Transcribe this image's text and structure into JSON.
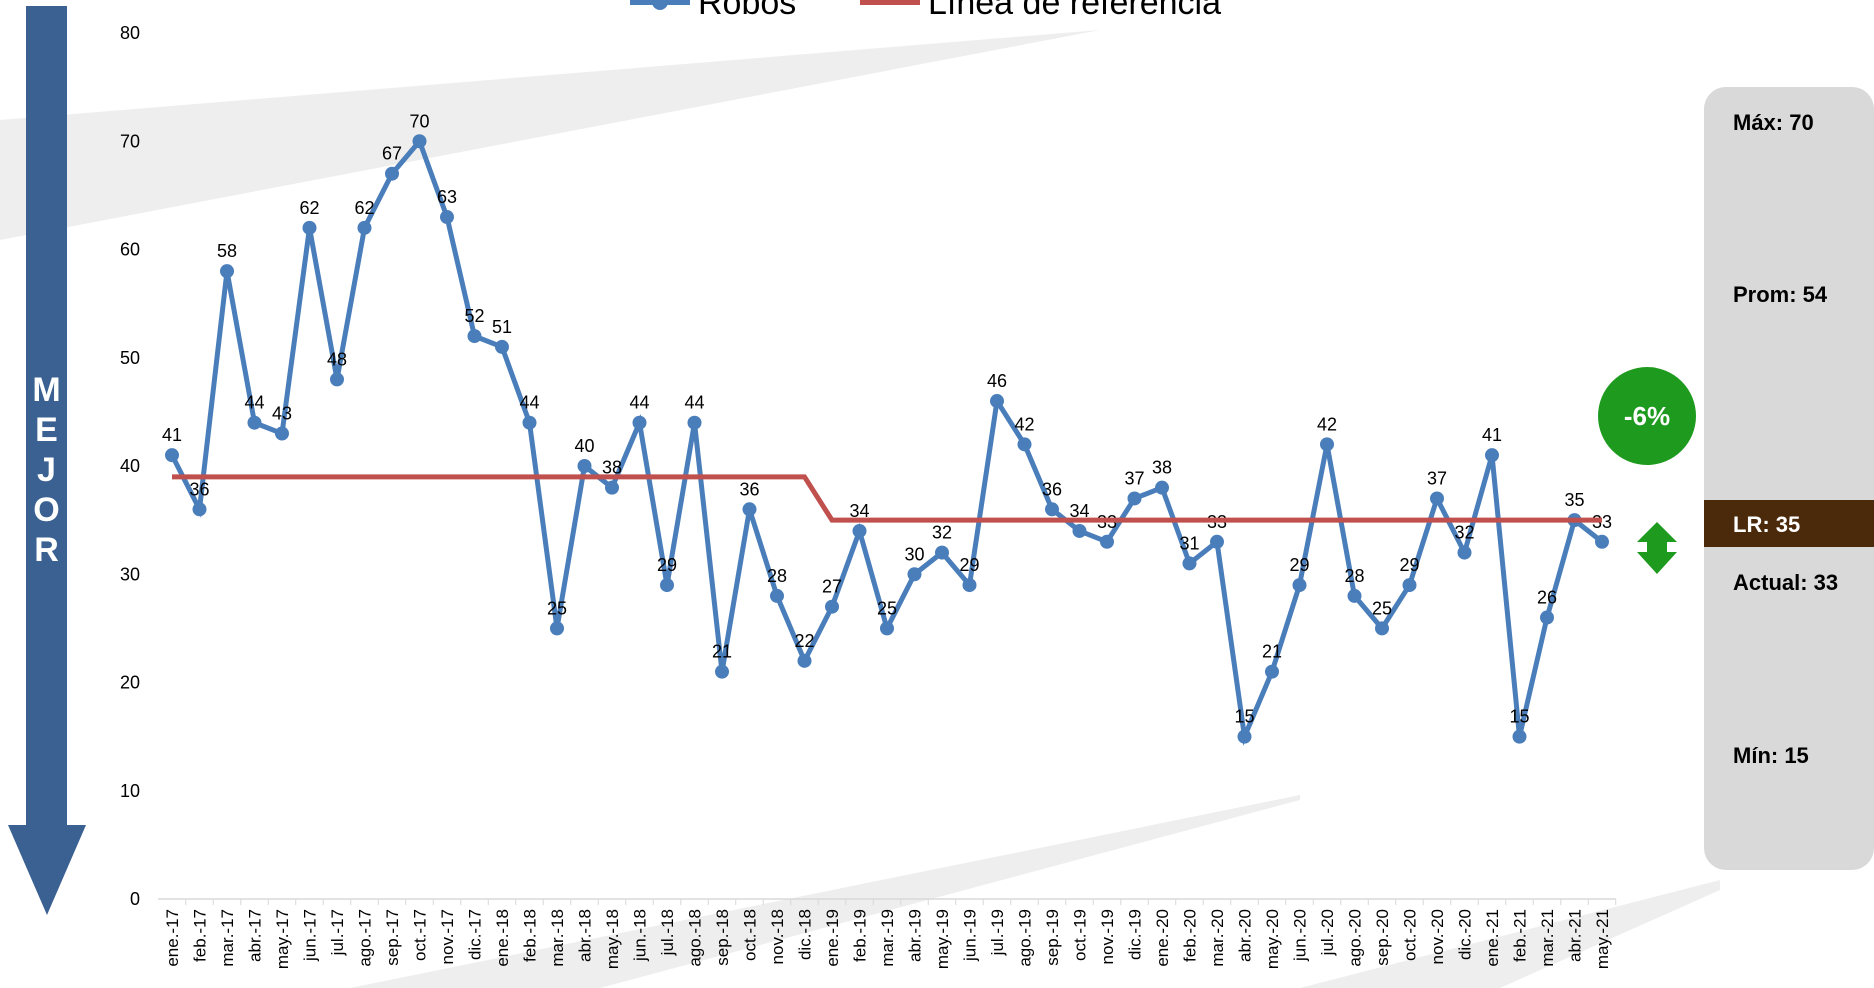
{
  "chart_data": {
    "type": "line",
    "categories": [
      "ene.-17",
      "feb.-17",
      "mar.-17",
      "abr.-17",
      "may.-17",
      "jun.-17",
      "jul.-17",
      "ago.-17",
      "sep.-17",
      "oct.-17",
      "nov.-17",
      "dic.-17",
      "ene.-18",
      "feb.-18",
      "mar.-18",
      "abr.-18",
      "may.-18",
      "jun.-18",
      "jul.-18",
      "ago.-18",
      "sep.-18",
      "oct.-18",
      "nov.-18",
      "dic.-18",
      "ene.-19",
      "feb.-19",
      "mar.-19",
      "abr.-19",
      "may.-19",
      "jun.-19",
      "jul.-19",
      "ago.-19",
      "sep.-19",
      "oct.-19",
      "nov.-19",
      "dic.-19",
      "ene.-20",
      "feb.-20",
      "mar.-20",
      "abr.-20",
      "may.-20",
      "jun.-20",
      "jul.-20",
      "ago.-20",
      "sep.-20",
      "oct.-20",
      "nov.-20",
      "dic.-20",
      "ene.-21",
      "feb.-21",
      "mar.-21",
      "abr.-21",
      "may.-21"
    ],
    "series": [
      {
        "name": "Robos",
        "color": "#4a7ebb",
        "values": [
          41,
          36,
          58,
          44,
          43,
          62,
          48,
          62,
          67,
          70,
          63,
          52,
          51,
          44,
          25,
          40,
          38,
          44,
          29,
          44,
          21,
          36,
          28,
          22,
          27,
          34,
          25,
          30,
          32,
          29,
          46,
          42,
          36,
          34,
          33,
          37,
          38,
          31,
          33,
          15,
          21,
          29,
          42,
          28,
          25,
          29,
          37,
          32,
          41,
          15,
          26,
          35,
          33
        ]
      },
      {
        "name": "Línea de referencia",
        "color": "#c0504d",
        "values": [
          39,
          39,
          39,
          39,
          39,
          39,
          39,
          39,
          39,
          39,
          39,
          39,
          39,
          39,
          39,
          39,
          39,
          39,
          39,
          39,
          39,
          39,
          39,
          39,
          35,
          35,
          35,
          35,
          35,
          35,
          35,
          35,
          35,
          35,
          35,
          35,
          35,
          35,
          35,
          35,
          35,
          35,
          35,
          35,
          35,
          35,
          35,
          35,
          35,
          35,
          35,
          35,
          35
        ]
      }
    ],
    "ylim": [
      0,
      80
    ],
    "yticks": [
      0,
      10,
      20,
      30,
      40,
      50,
      60,
      70,
      80
    ],
    "grid": false,
    "side_label": "MEJOR",
    "badge": "-6%",
    "stats": {
      "max": "Máx:  70",
      "avg": "Prom: 54",
      "lr": "LR:  35",
      "current": "Actual: 33",
      "min": "Mín: 15"
    }
  }
}
